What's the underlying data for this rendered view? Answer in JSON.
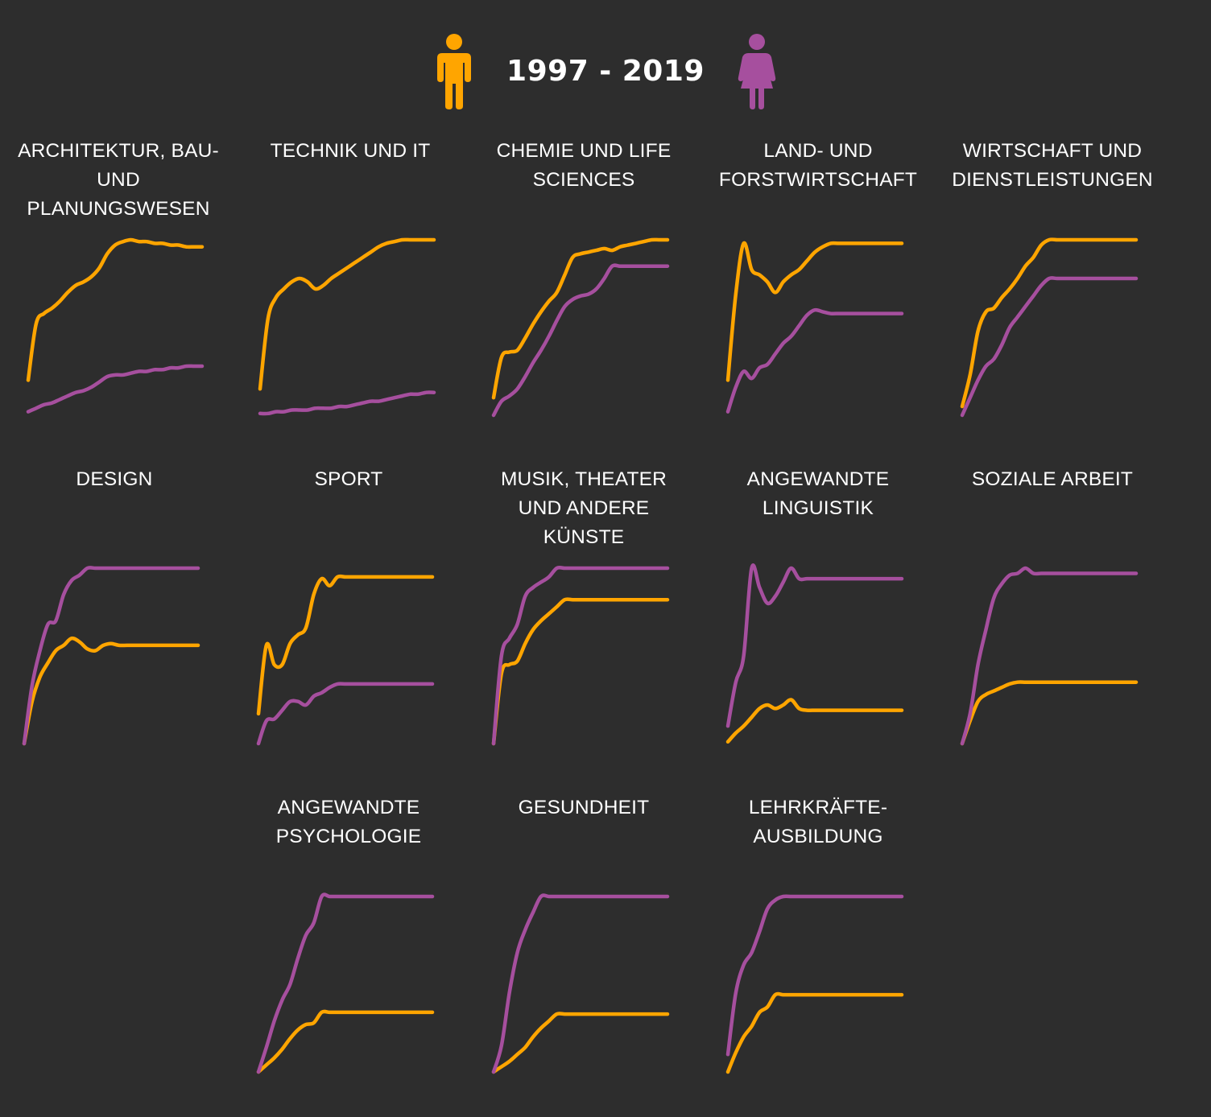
{
  "header": {
    "period": "1997 - 2019",
    "left_icon": "man-icon",
    "right_icon": "woman-icon"
  },
  "colors": {
    "background": "#2d2d2d",
    "men": "#ffa500",
    "women": "#a64f9e",
    "text": "#ffffff"
  },
  "chart_data": {
    "type": "line",
    "layout": "small-multiples",
    "x": [
      1997,
      1998,
      1999,
      2000,
      2001,
      2002,
      2003,
      2004,
      2005,
      2006,
      2007,
      2008,
      2009,
      2010,
      2011,
      2012,
      2013,
      2014,
      2015,
      2016,
      2017,
      2018,
      2019
    ],
    "y_scale": "independent per panel (relative, axes not shown)",
    "axes_shown": false,
    "grid": false,
    "panels": [
      {
        "title": "ARCHITEKTUR, BAU- UND PLANUNGSWESEN",
        "men": [
          0.2,
          0.52,
          0.58,
          0.61,
          0.65,
          0.7,
          0.74,
          0.76,
          0.79,
          0.84,
          0.92,
          0.97,
          0.99,
          1.0,
          0.99,
          0.99,
          0.98,
          0.98,
          0.97,
          0.97,
          0.96,
          0.96,
          0.96
        ],
        "women": [
          0.02,
          0.04,
          0.06,
          0.07,
          0.09,
          0.11,
          0.13,
          0.14,
          0.16,
          0.19,
          0.22,
          0.23,
          0.23,
          0.24,
          0.25,
          0.25,
          0.26,
          0.26,
          0.27,
          0.27,
          0.28,
          0.28,
          0.28
        ]
      },
      {
        "title": "TECHNIK UND IT",
        "men": [
          0.15,
          0.55,
          0.67,
          0.72,
          0.76,
          0.78,
          0.76,
          0.72,
          0.74,
          0.78,
          0.81,
          0.84,
          0.87,
          0.9,
          0.93,
          0.96,
          0.98,
          0.99,
          1.0,
          1.0,
          1.0,
          1.0,
          1.0
        ],
        "women": [
          0.01,
          0.01,
          0.02,
          0.02,
          0.03,
          0.03,
          0.03,
          0.04,
          0.04,
          0.04,
          0.05,
          0.05,
          0.06,
          0.07,
          0.08,
          0.08,
          0.09,
          0.1,
          0.11,
          0.12,
          0.12,
          0.13,
          0.13
        ]
      },
      {
        "title": "CHEMIE UND LIFE SCIENCES",
        "men": [
          0.1,
          0.33,
          0.36,
          0.37,
          0.44,
          0.52,
          0.59,
          0.65,
          0.7,
          0.8,
          0.9,
          0.92,
          0.93,
          0.94,
          0.95,
          0.94,
          0.96,
          0.97,
          0.98,
          0.99,
          1.0,
          1.0,
          1.0
        ],
        "women": [
          0.0,
          0.08,
          0.11,
          0.15,
          0.22,
          0.3,
          0.37,
          0.45,
          0.54,
          0.62,
          0.66,
          0.68,
          0.69,
          0.72,
          0.78,
          0.85,
          0.85,
          0.85,
          0.85,
          0.85,
          0.85,
          0.85,
          0.85
        ]
      },
      {
        "title": "LAND- UND FORSTWIRTSCHAFT",
        "men": [
          0.2,
          0.69,
          0.98,
          0.83,
          0.8,
          0.76,
          0.7,
          0.76,
          0.8,
          0.83,
          0.88,
          0.93,
          0.96,
          0.98,
          0.98,
          0.98,
          0.98,
          0.98,
          0.98,
          0.98,
          0.98,
          0.98,
          0.98
        ],
        "women": [
          0.02,
          0.16,
          0.25,
          0.21,
          0.27,
          0.29,
          0.35,
          0.41,
          0.45,
          0.51,
          0.57,
          0.6,
          0.59,
          0.58,
          0.58,
          0.58,
          0.58,
          0.58,
          0.58,
          0.58,
          0.58,
          0.58,
          0.58
        ]
      },
      {
        "title": "WIRTSCHAFT UND DIENSTLEISTUNGEN",
        "men": [
          0.05,
          0.23,
          0.48,
          0.59,
          0.61,
          0.67,
          0.72,
          0.78,
          0.85,
          0.9,
          0.97,
          1.0,
          1.0,
          1.0,
          1.0,
          1.0,
          1.0,
          1.0,
          1.0,
          1.0,
          1.0,
          1.0,
          1.0
        ],
        "women": [
          0.0,
          0.1,
          0.2,
          0.28,
          0.32,
          0.4,
          0.5,
          0.56,
          0.62,
          0.68,
          0.74,
          0.78,
          0.78,
          0.78,
          0.78,
          0.78,
          0.78,
          0.78,
          0.78,
          0.78,
          0.78,
          0.78,
          0.78
        ]
      },
      {
        "title": "DESIGN",
        "men": [
          0.0,
          0.24,
          0.38,
          0.46,
          0.53,
          0.56,
          0.6,
          0.58,
          0.54,
          0.53,
          0.56,
          0.57,
          0.56,
          0.56,
          0.56,
          0.56,
          0.56,
          0.56,
          0.56,
          0.56,
          0.56,
          0.56,
          0.56
        ],
        "women": [
          0.0,
          0.33,
          0.53,
          0.68,
          0.7,
          0.85,
          0.93,
          0.96,
          1.0,
          1.0,
          1.0,
          1.0,
          1.0,
          1.0,
          1.0,
          1.0,
          1.0,
          1.0,
          1.0,
          1.0,
          1.0,
          1.0,
          1.0
        ]
      },
      {
        "title": "SPORT",
        "men": [
          0.17,
          0.56,
          0.45,
          0.45,
          0.57,
          0.62,
          0.66,
          0.85,
          0.94,
          0.9,
          0.95,
          0.95,
          0.95,
          0.95,
          0.95,
          0.95,
          0.95,
          0.95,
          0.95,
          0.95,
          0.95,
          0.95,
          0.95
        ],
        "women": [
          0.0,
          0.13,
          0.14,
          0.19,
          0.24,
          0.24,
          0.22,
          0.27,
          0.29,
          0.32,
          0.34,
          0.34,
          0.34,
          0.34,
          0.34,
          0.34,
          0.34,
          0.34,
          0.34,
          0.34,
          0.34,
          0.34,
          0.34
        ]
      },
      {
        "title": "MUSIK, THEATER UND ANDERE KÜNSTE",
        "men": [
          0.0,
          0.4,
          0.45,
          0.47,
          0.57,
          0.65,
          0.7,
          0.74,
          0.78,
          0.82,
          0.82,
          0.82,
          0.82,
          0.82,
          0.82,
          0.82,
          0.82,
          0.82,
          0.82,
          0.82,
          0.82,
          0.82,
          0.82
        ],
        "women": [
          0.0,
          0.5,
          0.6,
          0.68,
          0.84,
          0.89,
          0.92,
          0.95,
          1.0,
          1.0,
          1.0,
          1.0,
          1.0,
          1.0,
          1.0,
          1.0,
          1.0,
          1.0,
          1.0,
          1.0,
          1.0,
          1.0,
          1.0
        ]
      },
      {
        "title": "ANGEWANDTE LINGUISTIK",
        "men": [
          0.01,
          0.06,
          0.1,
          0.15,
          0.2,
          0.22,
          0.2,
          0.22,
          0.25,
          0.2,
          0.19,
          0.19,
          0.19,
          0.19,
          0.19,
          0.19,
          0.19,
          0.19,
          0.19,
          0.19,
          0.19,
          0.19,
          0.19
        ],
        "women": [
          0.1,
          0.35,
          0.5,
          1.0,
          0.89,
          0.8,
          0.84,
          0.92,
          1.0,
          0.94,
          0.94,
          0.94,
          0.94,
          0.94,
          0.94,
          0.94,
          0.94,
          0.94,
          0.94,
          0.94,
          0.94,
          0.94,
          0.94
        ]
      },
      {
        "title": "SOZIALE ARBEIT",
        "men": [
          0.0,
          0.13,
          0.24,
          0.28,
          0.3,
          0.32,
          0.34,
          0.35,
          0.35,
          0.35,
          0.35,
          0.35,
          0.35,
          0.35,
          0.35,
          0.35,
          0.35,
          0.35,
          0.35,
          0.35,
          0.35,
          0.35,
          0.35
        ],
        "women": [
          0.0,
          0.17,
          0.45,
          0.65,
          0.83,
          0.91,
          0.96,
          0.97,
          1.0,
          0.97,
          0.97,
          0.97,
          0.97,
          0.97,
          0.97,
          0.97,
          0.97,
          0.97,
          0.97,
          0.97,
          0.97,
          0.97,
          0.97
        ]
      },
      {
        "title": "ANGEWANDTE PSYCHOLOGIE",
        "men": [
          0.0,
          0.04,
          0.08,
          0.13,
          0.19,
          0.24,
          0.27,
          0.28,
          0.34,
          0.34,
          0.34,
          0.34,
          0.34,
          0.34,
          0.34,
          0.34,
          0.34,
          0.34,
          0.34,
          0.34,
          0.34,
          0.34,
          0.34
        ],
        "women": [
          0.0,
          0.14,
          0.29,
          0.41,
          0.5,
          0.65,
          0.78,
          0.85,
          1.0,
          1.0,
          1.0,
          1.0,
          1.0,
          1.0,
          1.0,
          1.0,
          1.0,
          1.0,
          1.0,
          1.0,
          1.0,
          1.0,
          1.0
        ]
      },
      {
        "title": "GESUNDHEIT",
        "men": [
          0.0,
          0.03,
          0.06,
          0.1,
          0.14,
          0.2,
          0.25,
          0.29,
          0.33,
          0.33,
          0.33,
          0.33,
          0.33,
          0.33,
          0.33,
          0.33,
          0.33,
          0.33,
          0.33,
          0.33,
          0.33,
          0.33,
          0.33
        ],
        "women": [
          0.0,
          0.15,
          0.45,
          0.68,
          0.81,
          0.91,
          1.0,
          1.0,
          1.0,
          1.0,
          1.0,
          1.0,
          1.0,
          1.0,
          1.0,
          1.0,
          1.0,
          1.0,
          1.0,
          1.0,
          1.0,
          1.0,
          1.0
        ]
      },
      {
        "title": "LEHRKRÄFTE-AUSBILDUNG",
        "men": [
          0.0,
          0.11,
          0.2,
          0.26,
          0.34,
          0.37,
          0.44,
          0.44,
          0.44,
          0.44,
          0.44,
          0.44,
          0.44,
          0.44,
          0.44,
          0.44,
          0.44,
          0.44,
          0.44,
          0.44,
          0.44,
          0.44,
          0.44
        ],
        "women": [
          0.1,
          0.45,
          0.61,
          0.68,
          0.8,
          0.93,
          0.98,
          1.0,
          1.0,
          1.0,
          1.0,
          1.0,
          1.0,
          1.0,
          1.0,
          1.0,
          1.0,
          1.0,
          1.0,
          1.0,
          1.0,
          1.0,
          1.0
        ]
      }
    ]
  }
}
